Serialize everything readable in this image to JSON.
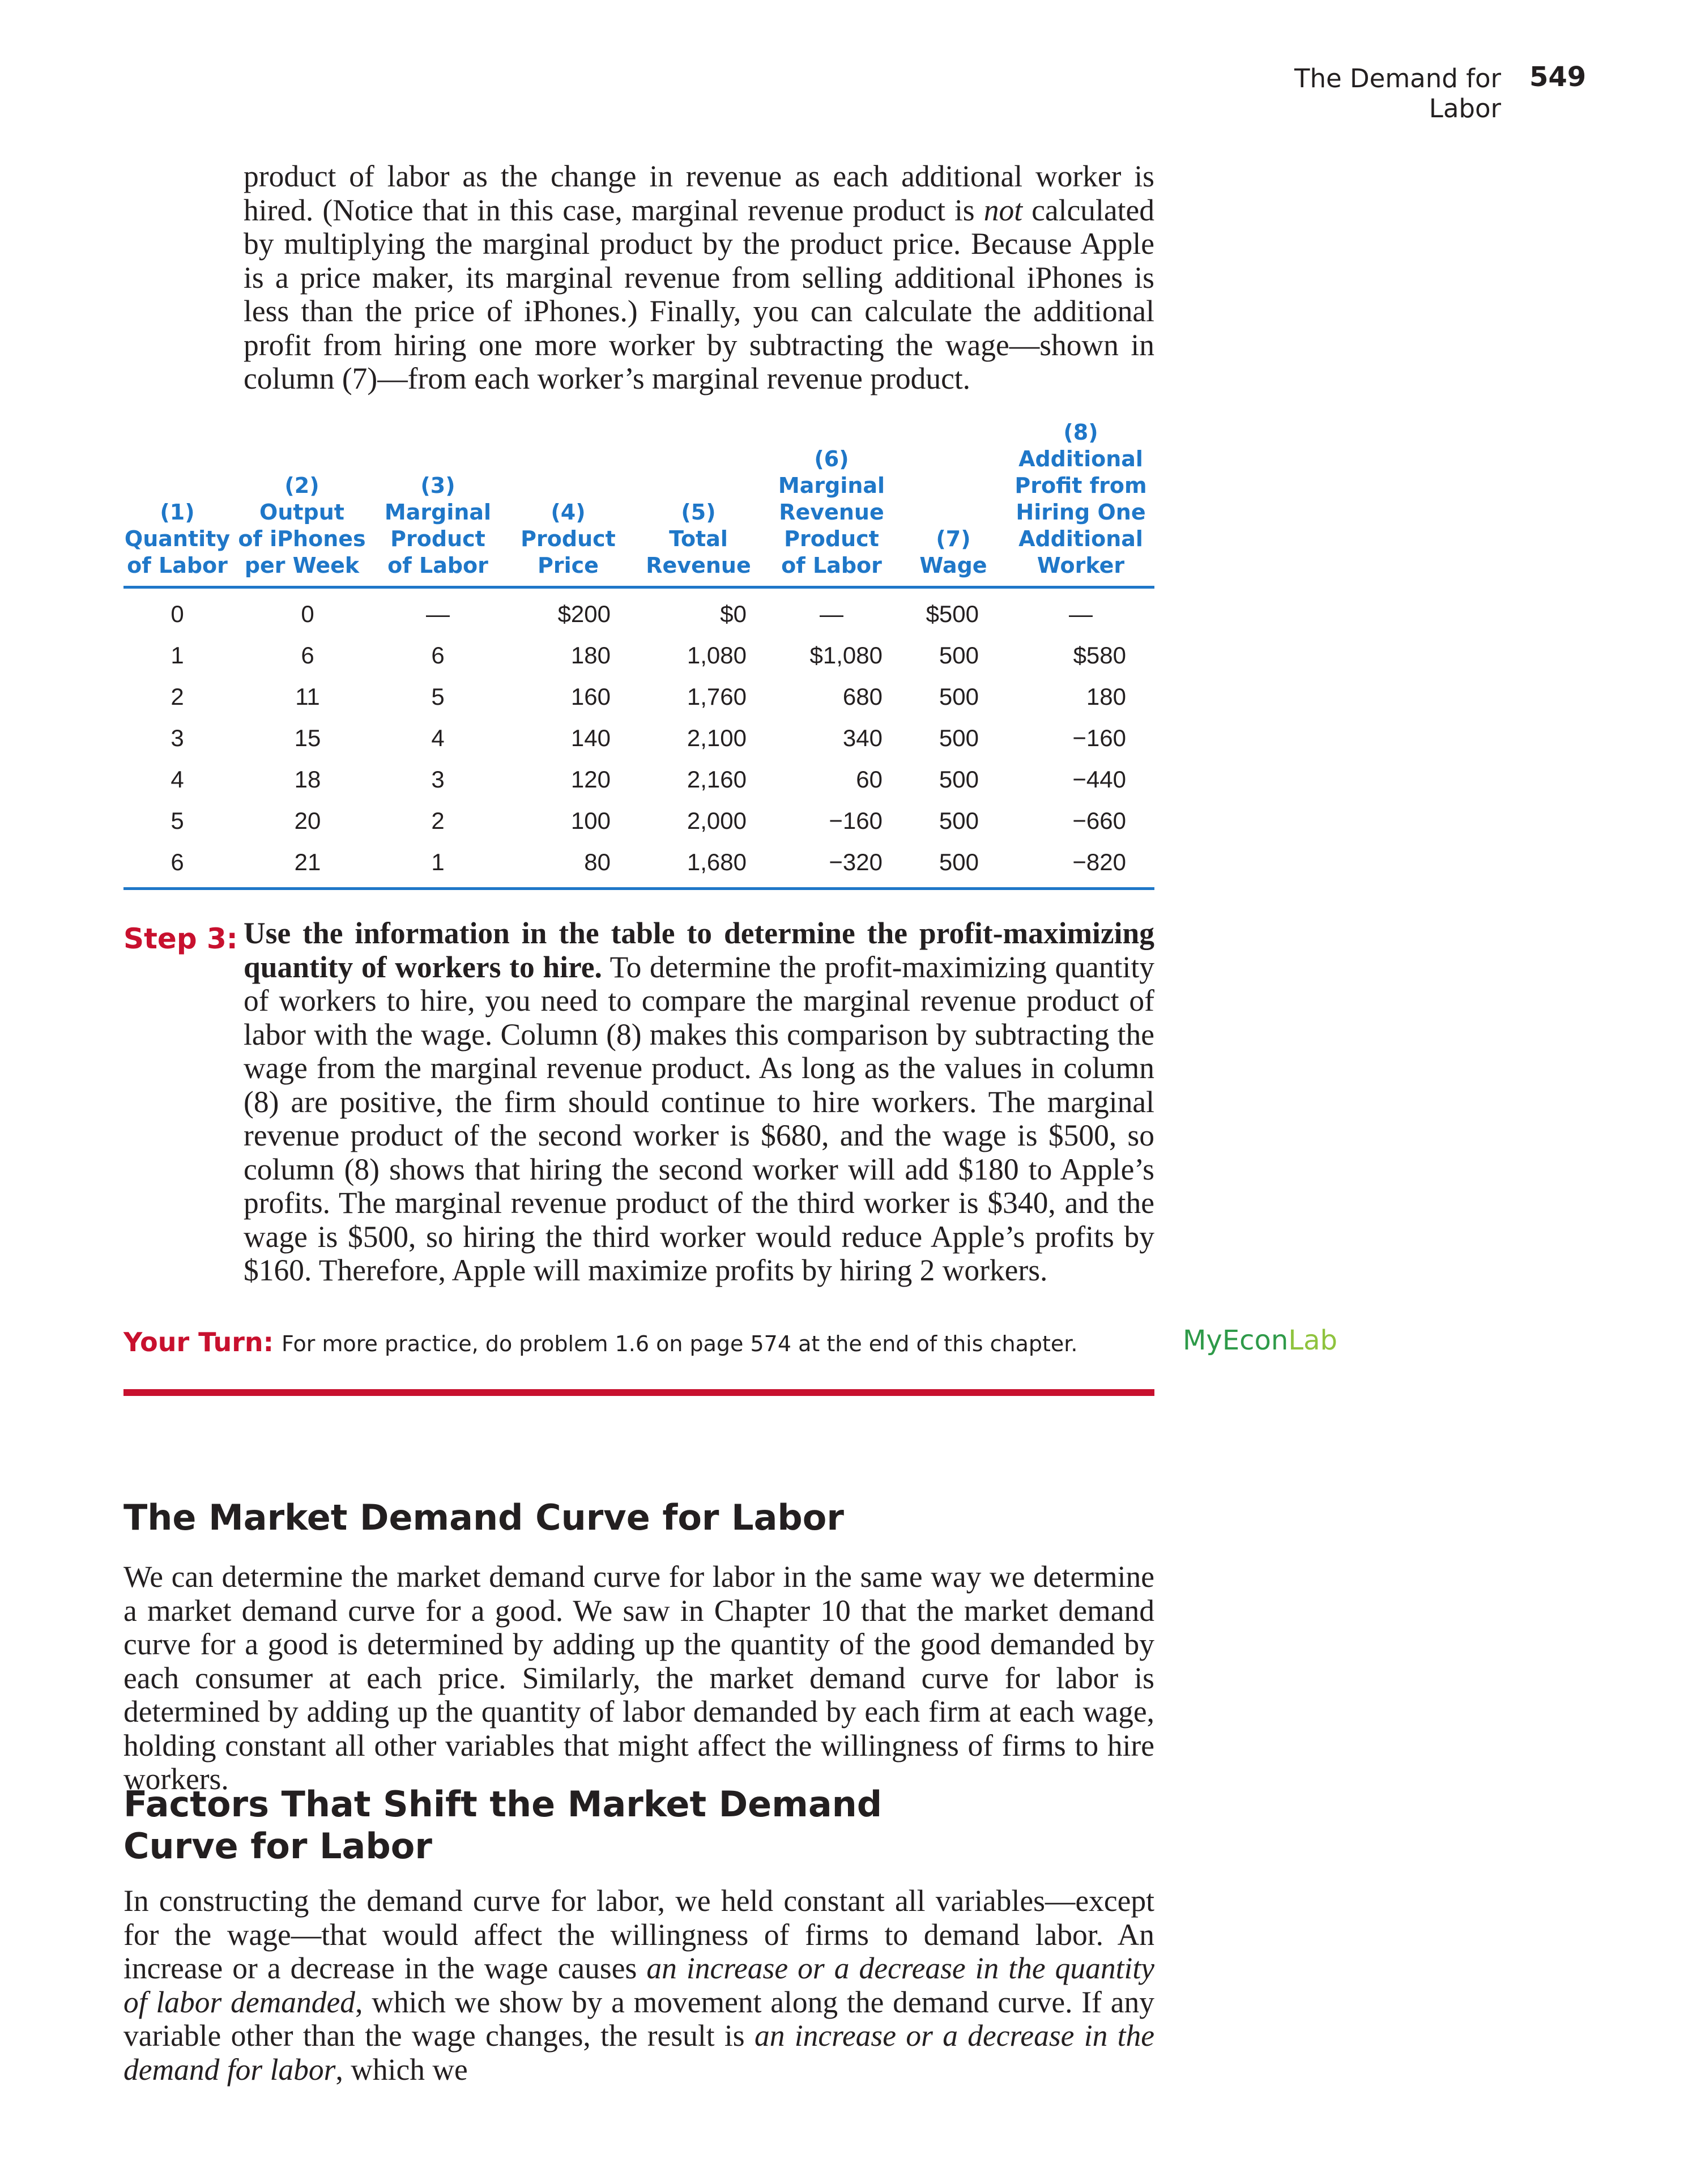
{
  "header": {
    "running_title": "The Demand for Labor",
    "page_number": "549"
  },
  "intro_paragraph": {
    "part1": "product of labor as the change in revenue as each additional worker is hired. (Notice that in this case, marginal revenue product is ",
    "italic": "not",
    "part2": " calculated by multiplying the marginal product by the product price. Because Apple is a price maker, its marginal revenue from selling additional iPhones is less than the price of iPhones.) Finally, you can calculate the additional profit from hiring one more worker by subtracting the wage—shown in column (7)—from each worker’s marginal revenue product."
  },
  "table": {
    "headers": [
      [
        "(1)",
        "Quantity",
        "of Labor"
      ],
      [
        "(2)",
        "Output",
        "of iPhones",
        "per Week"
      ],
      [
        "(3)",
        "Marginal",
        "Product",
        "of Labor"
      ],
      [
        "(4)",
        "Product",
        "Price"
      ],
      [
        "(5)",
        "Total",
        "Revenue"
      ],
      [
        "(6)",
        "Marginal",
        "Revenue",
        "Product",
        "of Labor"
      ],
      [
        "(7)",
        "Wage"
      ],
      [
        "(8)",
        "Additional",
        "Profit from",
        "Hiring One",
        "Additional",
        "Worker"
      ]
    ],
    "rows": [
      [
        "0",
        "0",
        "—",
        "$200",
        "$0",
        "—",
        "$500",
        "—"
      ],
      [
        "1",
        "6",
        "6",
        "180",
        "1,080",
        "$1,080",
        "500",
        "$580"
      ],
      [
        "2",
        "11",
        "5",
        "160",
        "1,760",
        "680",
        "500",
        "180"
      ],
      [
        "3",
        "15",
        "4",
        "140",
        "2,100",
        "340",
        "500",
        "−160"
      ],
      [
        "4",
        "18",
        "3",
        "120",
        "2,160",
        "60",
        "500",
        "−440"
      ],
      [
        "5",
        "20",
        "2",
        "100",
        "2,000",
        "−160",
        "500",
        "−660"
      ],
      [
        "6",
        "21",
        "1",
        "80",
        "1,680",
        "−320",
        "500",
        "−820"
      ]
    ]
  },
  "step3": {
    "label": "Step 3:",
    "bold": "Use the information in the table to determine the profit-maximizing quantity of workers to hire.",
    "text": " To determine the profit-maximizing quantity of workers to hire, you need to compare the marginal revenue product of labor with the wage. Column (8) makes this comparison by subtracting the wage from the marginal revenue product. As long as the values in column (8) are positive, the firm should continue to hire workers. The marginal revenue product of the second worker is $680, and the wage is $500, so column (8) shows that hiring the second worker will add $180 to Apple’s profits. The marginal revenue product of the third worker is $340, and the wage is $500, so hiring the third worker would reduce Apple’s profits by $160. Therefore, Apple will maximize profits by hiring 2 workers."
  },
  "your_turn": {
    "label": "Your Turn:",
    "text": "For more practice, do problem 1.6 on page 574 at the end of this chapter."
  },
  "myeconlab": {
    "part1": "MyEcon",
    "part2": "Lab"
  },
  "section1": {
    "heading": "The Market Demand Curve for Labor",
    "body": "We can determine the market demand curve for labor in the same way we determine a market demand curve for a good. We saw in Chapter 10 that the market demand curve for a good is determined by adding up the quantity of the good demanded by each consumer at each price. Similarly, the market demand curve for labor is determined by adding up the quantity of labor demanded by each firm at each wage, holding constant all other variables that might affect the willingness of firms to hire workers."
  },
  "section2": {
    "heading_line1": "Factors That Shift the Market Demand",
    "heading_line2": "Curve for Labor",
    "body_part1": "In constructing the demand curve for labor, we held constant all variables—except for the wage—that would affect the willingness of firms to demand labor. An increase or a decrease in the wage causes ",
    "body_italic1": "an increase or a decrease in the quantity of labor demanded",
    "body_part2": ", which we show by a movement along the demand curve. If any variable other than the wage changes, the result is ",
    "body_italic2": "an increase or a decrease in the demand for labor",
    "body_part3": ", which we"
  }
}
